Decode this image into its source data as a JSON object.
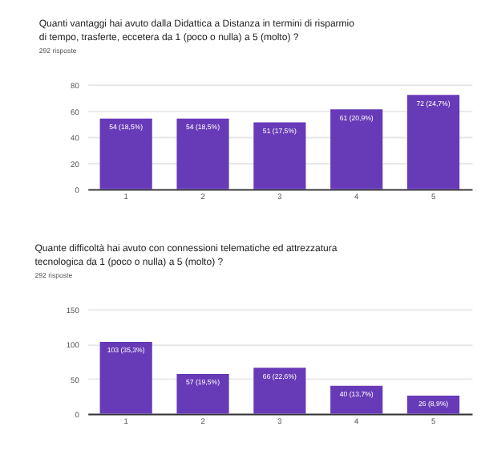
{
  "chart_data": [
    {
      "type": "bar",
      "title": "Quanti vantaggi hai avuto dalla Didattica a Distanza in termini di risparmio di tempo, trasferte, eccetera da 1 (poco o nulla) a 5 (molto) ?",
      "subtitle": "292 risposte",
      "categories": [
        "1",
        "2",
        "3",
        "4",
        "5"
      ],
      "values": [
        54,
        54,
        51,
        61,
        72
      ],
      "value_labels": [
        "54 (18,5%)",
        "54 (18,5%)",
        "51 (17,5%)",
        "61 (20,9%)",
        "72 (24,7%)"
      ],
      "color": "#673ab7",
      "ylim": [
        0,
        80
      ],
      "yticks": [
        0,
        20,
        40,
        60,
        80
      ],
      "grid": "y"
    },
    {
      "type": "bar",
      "title": "Quante difficoltà hai avuto con connessioni telematiche ed attrezzatura tecnologica da 1 (poco o nulla) a 5 (molto) ?",
      "subtitle": "292 risposte",
      "categories": [
        "1",
        "2",
        "3",
        "4",
        "5"
      ],
      "values": [
        103,
        57,
        66,
        40,
        26
      ],
      "value_labels": [
        "103 (35,3%)",
        "57 (19,5%)",
        "66 (22,6%)",
        "40 (13,7%)",
        "26 (8,9%)"
      ],
      "color": "#673ab7",
      "ylim": [
        0,
        150
      ],
      "yticks": [
        0,
        50,
        100,
        150
      ],
      "grid": "y"
    }
  ]
}
